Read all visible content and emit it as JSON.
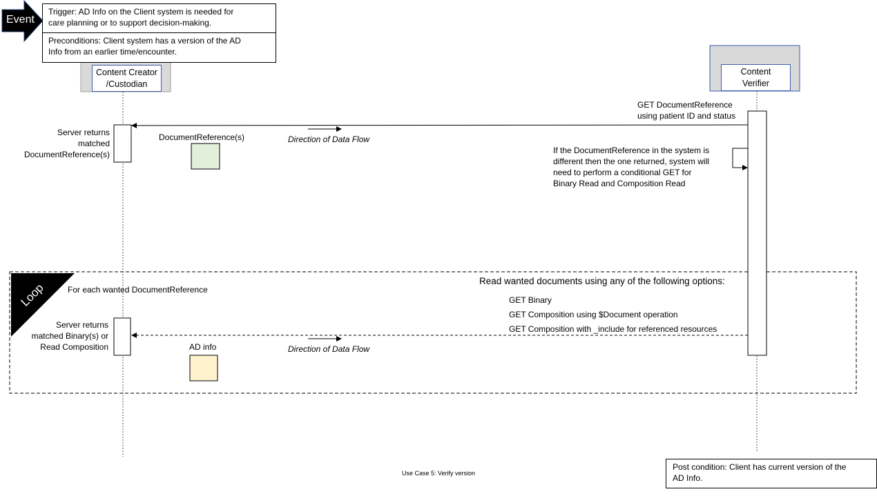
{
  "event": {
    "label": "Event"
  },
  "trigger": {
    "text_line1": "Trigger:  AD Info on the Client system is needed  for",
    "text_line2": "care planning  or to support decision-making."
  },
  "preconditions": {
    "text_line1": "Preconditions:  Client system has a version  of the AD",
    "text_line2": "Info  from  an earlier time/encounter."
  },
  "participants": [
    {
      "line1": "Content Creator",
      "line2": "/Custodian"
    },
    {
      "line1": "Content",
      "line2": "Verifier"
    }
  ],
  "messages": {
    "get_docref": {
      "line1": "GET DocumentReference",
      "line2": "using patient ID and status"
    },
    "server_returns_docref": {
      "line1": "Server  returns",
      "line2": "matched",
      "line3": "DocumentReference(s)"
    },
    "docref_payload": "DocumentReference(s)",
    "direction_label": "Direction of Data Flow",
    "self_check": {
      "line1": "If the DocumentReference  in the system is",
      "line2": "different  then the one returned,  system will",
      "line3": "need to perform  a conditional GET for",
      "line4": "Binary Read  and Composition  Read"
    },
    "read_options_title": "Read wanted documents using any of the following options:",
    "read_options": [
      "GET Binary",
      "GET Composition using $Document operation",
      "GET Composition with  _include for referenced  resources"
    ],
    "server_returns_binary": {
      "line1": "Server  returns",
      "line2": "matched Binary(s) or",
      "line3": "Read Composition"
    },
    "ad_info_payload": "AD info"
  },
  "loop": {
    "label": "Loop",
    "condition": "For each wanted DocumentReference"
  },
  "postcondition": {
    "line1": "Post condition: Client  has current version  of the",
    "line2": "AD Info."
  },
  "caption": "Use Case 5: Verify version",
  "colors": {
    "participant_border": "#3b5db0",
    "participant_bg": "#d9d9d9",
    "docref_fill": "#e2efda",
    "adinfo_fill": "#fff2cc"
  }
}
